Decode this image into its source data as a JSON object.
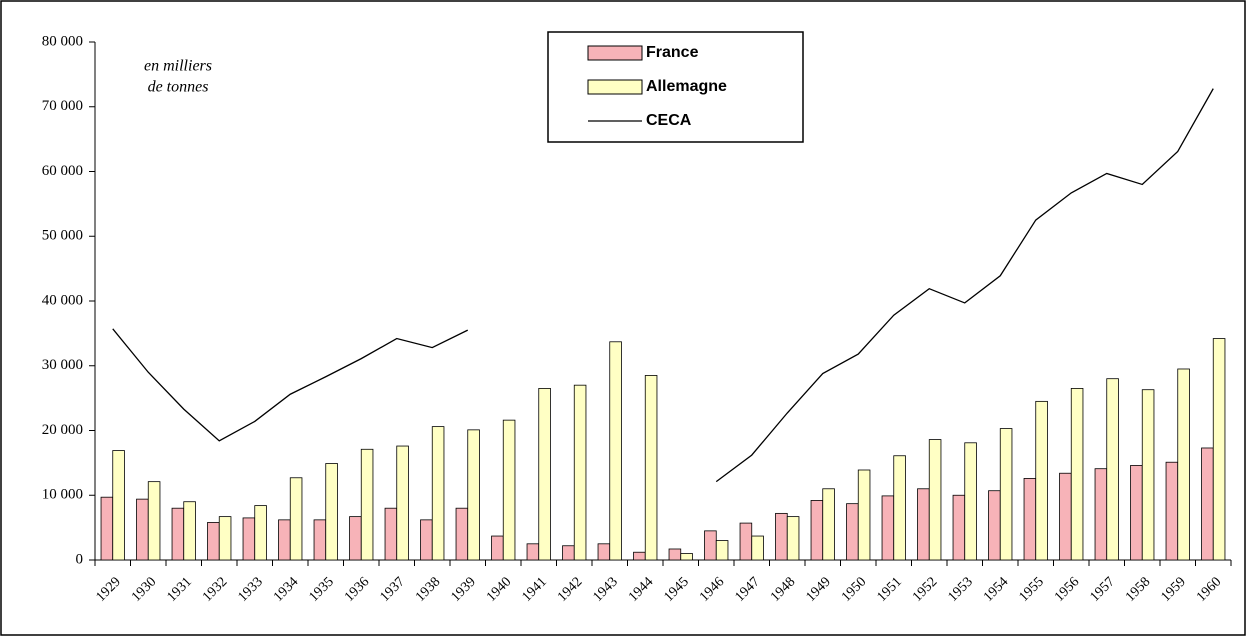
{
  "chart_data": {
    "type": "bar_line",
    "annotation": [
      "en milliers",
      "de tonnes"
    ],
    "categories": [
      "1929",
      "1930",
      "1931",
      "1932",
      "1933",
      "1934",
      "1935",
      "1936",
      "1937",
      "1938",
      "1939",
      "1940",
      "1941",
      "1942",
      "1943",
      "1944",
      "1945",
      "1946",
      "1947",
      "1948",
      "1949",
      "1950",
      "1951",
      "1952",
      "1953",
      "1954",
      "1955",
      "1956",
      "1957",
      "1958",
      "1959",
      "1960"
    ],
    "series": [
      {
        "name": "France",
        "type": "bar",
        "color": "#f7b3b8",
        "values": [
          9700,
          9400,
          8000,
          5800,
          6500,
          6200,
          6200,
          6700,
          8000,
          6200,
          8000,
          3700,
          2500,
          2200,
          2500,
          1200,
          1700,
          4500,
          5700,
          7200,
          9200,
          8700,
          9900,
          11000,
          10000,
          10700,
          12600,
          13400,
          14100,
          14600,
          15100,
          17300
        ]
      },
      {
        "name": "Allemagne",
        "type": "bar",
        "color": "#ffffc4",
        "values": [
          16900,
          12100,
          9000,
          6700,
          8400,
          12700,
          14900,
          17100,
          17600,
          20600,
          20100,
          21600,
          26500,
          27000,
          33700,
          28500,
          1000,
          3000,
          3700,
          6700,
          11000,
          13900,
          16100,
          18600,
          18100,
          20300,
          24500,
          26500,
          28000,
          26300,
          29500,
          34200
        ]
      },
      {
        "name": "CECA",
        "type": "line",
        "color": "#000000",
        "values": [
          35700,
          29000,
          23300,
          18400,
          21400,
          25600,
          28300,
          31100,
          34200,
          32800,
          35500,
          null,
          null,
          null,
          null,
          null,
          null,
          12100,
          16200,
          22700,
          28800,
          31800,
          37800,
          41900,
          39700,
          43900,
          52500,
          56700,
          59700,
          58000,
          63100,
          72800
        ]
      }
    ],
    "ylim": [
      0,
      80000
    ],
    "yticks": [
      0,
      {
        "value": 10000,
        "label": "10 000"
      },
      {
        "value": 20000,
        "label": "20 000"
      },
      {
        "value": 30000,
        "label": "30 000"
      },
      {
        "value": 40000,
        "label": "40 000"
      },
      {
        "value": 50000,
        "label": "50 000"
      },
      {
        "value": 60000,
        "label": "60 000"
      },
      {
        "value": 70000,
        "label": "70 000"
      },
      {
        "value": 80000,
        "label": "80 000"
      }
    ],
    "grid": false,
    "legend": "top"
  }
}
